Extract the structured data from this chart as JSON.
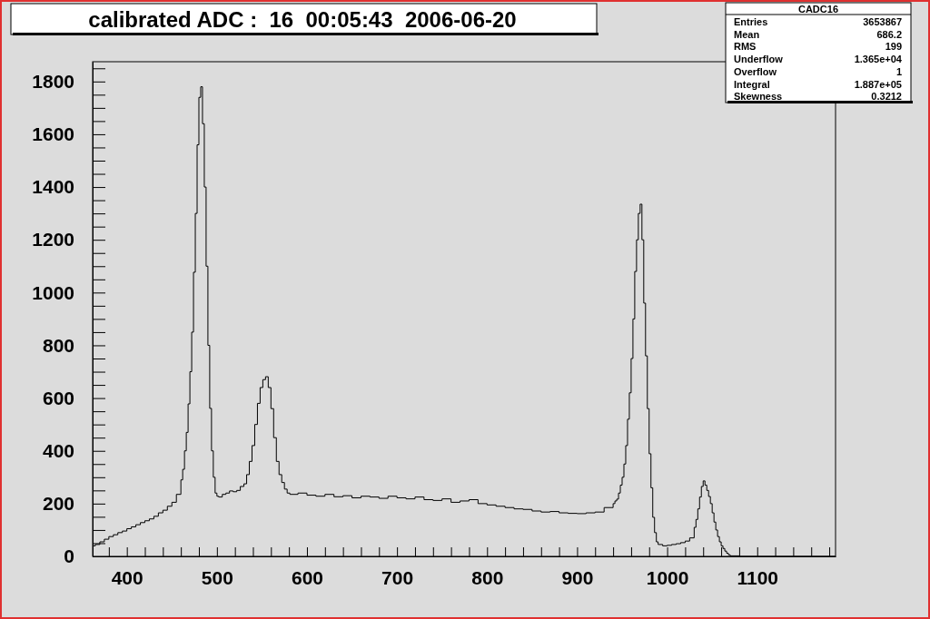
{
  "chart_data": {
    "type": "histogram",
    "title": "calibrated ADC :  16  00:05:43  2006-06-20",
    "annotations": [
      "CADC16",
      "Entries 3653867",
      "Mean 686.2",
      "RMS 199",
      "Underflow 1.365e+04",
      "Overflow 1",
      "Integral 1.887e+05",
      "Skewness 0.3212"
    ],
    "xlim": [
      362,
      1187
    ],
    "ylim": [
      0,
      1875
    ],
    "xticks": [
      {
        "value": 380,
        "label": null
      },
      400,
      {
        "value": 420,
        "label": null
      },
      {
        "value": 440,
        "label": null
      },
      {
        "value": 460,
        "label": null
      },
      {
        "value": 480,
        "label": null
      },
      500,
      {
        "value": 520,
        "label": null
      },
      {
        "value": 540,
        "label": null
      },
      {
        "value": 560,
        "label": null
      },
      {
        "value": 580,
        "label": null
      },
      600,
      {
        "value": 620,
        "label": null
      },
      {
        "value": 640,
        "label": null
      },
      {
        "value": 660,
        "label": null
      },
      {
        "value": 680,
        "label": null
      },
      700,
      {
        "value": 720,
        "label": null
      },
      {
        "value": 740,
        "label": null
      },
      {
        "value": 760,
        "label": null
      },
      {
        "value": 780,
        "label": null
      },
      800,
      {
        "value": 820,
        "label": null
      },
      {
        "value": 840,
        "label": null
      },
      {
        "value": 860,
        "label": null
      },
      {
        "value": 880,
        "label": null
      },
      900,
      {
        "value": 920,
        "label": null
      },
      {
        "value": 940,
        "label": null
      },
      {
        "value": 960,
        "label": null
      },
      {
        "value": 980,
        "label": null
      },
      1000,
      {
        "value": 1020,
        "label": null
      },
      {
        "value": 1040,
        "label": null
      },
      {
        "value": 1060,
        "label": null
      },
      {
        "value": 1080,
        "label": null
      },
      1100,
      {
        "value": 1120,
        "label": null
      },
      {
        "value": 1140,
        "label": null
      },
      {
        "value": 1160,
        "label": null
      },
      {
        "value": 1180,
        "label": null
      }
    ],
    "yticks": [
      0,
      {
        "value": 50,
        "label": null
      },
      {
        "value": 100,
        "label": null
      },
      {
        "value": 150,
        "label": null
      },
      200,
      {
        "value": 250,
        "label": null
      },
      {
        "value": 300,
        "label": null
      },
      {
        "value": 350,
        "label": null
      },
      400,
      {
        "value": 450,
        "label": null
      },
      {
        "value": 500,
        "label": null
      },
      {
        "value": 550,
        "label": null
      },
      600,
      {
        "value": 650,
        "label": null
      },
      {
        "value": 700,
        "label": null
      },
      {
        "value": 750,
        "label": null
      },
      800,
      {
        "value": 850,
        "label": null
      },
      {
        "value": 900,
        "label": null
      },
      {
        "value": 950,
        "label": null
      },
      1000,
      {
        "value": 1050,
        "label": null
      },
      {
        "value": 1100,
        "label": null
      },
      {
        "value": 1150,
        "label": null
      },
      1200,
      {
        "value": 1250,
        "label": null
      },
      {
        "value": 1300,
        "label": null
      },
      {
        "value": 1350,
        "label": null
      },
      1400,
      {
        "value": 1450,
        "label": null
      },
      {
        "value": 1500,
        "label": null
      },
      {
        "value": 1550,
        "label": null
      },
      1600,
      {
        "value": 1650,
        "label": null
      },
      {
        "value": 1700,
        "label": null
      },
      {
        "value": 1750,
        "label": null
      },
      1800,
      {
        "value": 1850,
        "label": null
      }
    ],
    "color": "#000000",
    "bins": [
      362,
      365,
      370,
      375,
      380,
      385,
      390,
      395,
      400,
      405,
      410,
      415,
      420,
      425,
      430,
      435,
      440,
      445,
      450,
      455,
      460,
      462,
      464,
      466,
      468,
      470,
      472,
      474,
      476,
      478,
      480,
      482,
      484,
      486,
      488,
      490,
      492,
      494,
      496,
      498,
      500,
      502,
      506,
      510,
      514,
      518,
      522,
      526,
      530,
      533,
      536,
      539,
      542,
      545,
      548,
      551,
      554,
      557,
      560,
      563,
      566,
      569,
      572,
      575,
      578,
      581,
      590,
      600,
      610,
      620,
      630,
      640,
      650,
      660,
      670,
      680,
      690,
      700,
      710,
      720,
      730,
      740,
      750,
      760,
      770,
      780,
      790,
      800,
      810,
      820,
      830,
      840,
      850,
      860,
      870,
      880,
      890,
      900,
      910,
      920,
      930,
      940,
      942,
      944,
      946,
      948,
      950,
      952,
      954,
      956,
      958,
      960,
      962,
      964,
      966,
      968,
      970,
      972,
      974,
      976,
      978,
      980,
      982,
      984,
      986,
      988,
      990,
      995,
      1000,
      1005,
      1010,
      1015,
      1020,
      1025,
      1030,
      1032,
      1034,
      1036,
      1038,
      1040,
      1042,
      1044,
      1046,
      1048,
      1050,
      1052,
      1054,
      1056,
      1058,
      1060,
      1062,
      1064,
      1066,
      1068,
      1070,
      1080,
      1187
    ],
    "values": [
      40,
      45,
      55,
      65,
      75,
      82,
      90,
      96,
      105,
      112,
      120,
      128,
      135,
      142,
      152,
      165,
      175,
      190,
      205,
      235,
      290,
      330,
      400,
      470,
      578,
      700,
      850,
      1077,
      1300,
      1560,
      1740,
      1780,
      1640,
      1400,
      1100,
      800,
      561,
      400,
      300,
      240,
      228,
      225,
      235,
      240,
      248,
      245,
      250,
      265,
      275,
      310,
      360,
      420,
      500,
      580,
      640,
      670,
      681,
      640,
      560,
      450,
      360,
      310,
      280,
      255,
      240,
      235,
      240,
      232,
      228,
      235,
      226,
      230,
      222,
      228,
      225,
      220,
      228,
      222,
      218,
      225,
      215,
      212,
      218,
      205,
      210,
      215,
      200,
      195,
      190,
      185,
      180,
      178,
      172,
      168,
      170,
      165,
      163,
      162,
      165,
      168,
      185,
      200,
      210,
      217,
      240,
      270,
      300,
      350,
      420,
      520,
      620,
      750,
      900,
      1080,
      1200,
      1300,
      1335,
      1200,
      960,
      760,
      560,
      389,
      260,
      148,
      90,
      55,
      45,
      40,
      42,
      45,
      48,
      52,
      58,
      70,
      110,
      140,
      180,
      225,
      265,
      286,
      270,
      250,
      227,
      200,
      165,
      130,
      100,
      75,
      55,
      40,
      30,
      20,
      12,
      6,
      2,
      0
    ]
  }
}
